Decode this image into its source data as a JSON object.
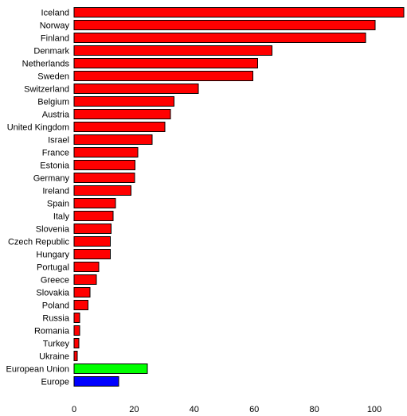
{
  "chart_data": {
    "type": "bar",
    "orientation": "horizontal",
    "title": "",
    "xlabel": "",
    "ylabel": "",
    "xlim": [
      0,
      110
    ],
    "xticks": [
      0,
      20,
      40,
      60,
      80,
      100
    ],
    "grid": false,
    "legend": "none",
    "categories": [
      "Iceland",
      "Norway",
      "Finland",
      "Denmark",
      "Netherlands",
      "Sweden",
      "Switzerland",
      "Belgium",
      "Austria",
      "United Kingdom",
      "Israel",
      "France",
      "Estonia",
      "Germany",
      "Ireland",
      "Spain",
      "Italy",
      "Slovenia",
      "Czech Republic",
      "Hungary",
      "Portugal",
      "Greece",
      "Slovakia",
      "Poland",
      "Russia",
      "Romania",
      "Turkey",
      "Ukraine",
      "European Union",
      "Europe"
    ],
    "values": [
      109.8,
      100.3,
      97.1,
      65.9,
      61.1,
      59.5,
      41.4,
      33.3,
      32.1,
      30.3,
      26.0,
      21.2,
      20.3,
      20.1,
      18.9,
      13.8,
      13.0,
      12.4,
      12.1,
      12.1,
      8.2,
      7.4,
      5.3,
      4.6,
      1.9,
      1.8,
      1.6,
      1.1,
      24.4,
      14.9
    ],
    "colors": [
      "#ff0000",
      "#ff0000",
      "#ff0000",
      "#ff0000",
      "#ff0000",
      "#ff0000",
      "#ff0000",
      "#ff0000",
      "#ff0000",
      "#ff0000",
      "#ff0000",
      "#ff0000",
      "#ff0000",
      "#ff0000",
      "#ff0000",
      "#ff0000",
      "#ff0000",
      "#ff0000",
      "#ff0000",
      "#ff0000",
      "#ff0000",
      "#ff0000",
      "#ff0000",
      "#ff0000",
      "#ff0000",
      "#ff0000",
      "#ff0000",
      "#ff0000",
      "#00ff00",
      "#0000ff"
    ]
  }
}
